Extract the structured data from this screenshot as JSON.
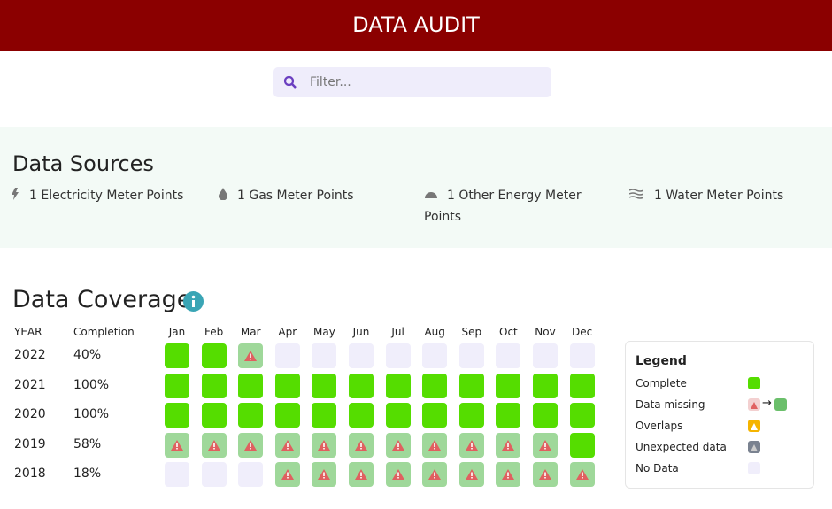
{
  "header": {
    "title": "DATA AUDIT"
  },
  "filter": {
    "placeholder": "Filter..."
  },
  "data_sources": {
    "title": "Data Sources",
    "items": [
      "1 Electricity Meter Points",
      "1 Gas Meter Points",
      "1 Other Energy Meter Points",
      "1 Water Meter Points"
    ]
  },
  "data_coverage": {
    "title": "Data Coverage",
    "columns": [
      "YEAR",
      "Completion",
      "Jan",
      "Feb",
      "Mar",
      "Apr",
      "May",
      "Jun",
      "Jul",
      "Aug",
      "Sep",
      "Oct",
      "Nov",
      "Dec"
    ],
    "rows": [
      {
        "year": "2022",
        "completion": "40%",
        "cells": [
          "Complete",
          "Complete",
          "Data missing",
          "No Data",
          "No Data",
          "No Data",
          "No Data",
          "No Data",
          "No Data",
          "No Data",
          "No Data",
          "No Data"
        ]
      },
      {
        "year": "2021",
        "completion": "100%",
        "cells": [
          "Complete",
          "Complete",
          "Complete",
          "Complete",
          "Complete",
          "Complete",
          "Complete",
          "Complete",
          "Complete",
          "Complete",
          "Complete",
          "Complete"
        ]
      },
      {
        "year": "2020",
        "completion": "100%",
        "cells": [
          "Complete",
          "Complete",
          "Complete",
          "Complete",
          "Complete",
          "Complete",
          "Complete",
          "Complete",
          "Complete",
          "Complete",
          "Complete",
          "Complete"
        ]
      },
      {
        "year": "2019",
        "completion": "58%",
        "cells": [
          "Data missing",
          "Data missing",
          "Data missing",
          "Data missing",
          "Data missing",
          "Data missing",
          "Data missing",
          "Data missing",
          "Data missing",
          "Data missing",
          "Data missing",
          "Complete"
        ]
      },
      {
        "year": "2018",
        "completion": "18%",
        "cells": [
          "No Data",
          "No Data",
          "No Data",
          "Data missing",
          "Data missing",
          "Data missing",
          "Data missing",
          "Data missing",
          "Data missing",
          "Data missing",
          "Data missing",
          "Data missing"
        ]
      }
    ]
  },
  "legend": {
    "title": "Legend",
    "items": [
      "Complete",
      "Data missing",
      "Overlaps",
      "Unexpected data",
      "No Data"
    ]
  }
}
